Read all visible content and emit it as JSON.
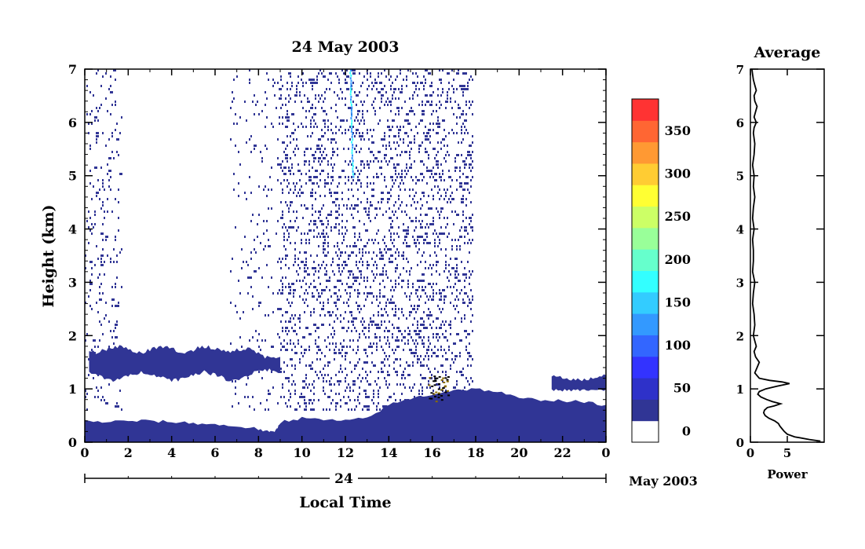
{
  "chart_data": [
    {
      "type": "heatmap",
      "title": "24 May 2003",
      "xlabel": "Local Time",
      "ylabel": "Height (km)",
      "xlim": [
        0,
        24
      ],
      "ylim": [
        0,
        7
      ],
      "x_ticks": [
        "0",
        "2",
        "4",
        "6",
        "8",
        "10",
        "12",
        "14",
        "16",
        "18",
        "20",
        "22",
        "0"
      ],
      "y_ticks": [
        "0",
        "1",
        "2",
        "3",
        "4",
        "5",
        "6",
        "7"
      ],
      "date_axis": {
        "day_label": "24",
        "month_label": "May 2003"
      },
      "layers": {
        "surface_layer_km": [
          [
            0,
            0.4
          ],
          [
            1,
            0.38
          ],
          [
            2,
            0.4
          ],
          [
            3,
            0.4
          ],
          [
            4,
            0.38
          ],
          [
            5,
            0.36
          ],
          [
            6,
            0.33
          ],
          [
            7,
            0.3
          ],
          [
            8,
            0.25
          ],
          [
            8.5,
            0.18
          ],
          [
            8.8,
            0.22
          ],
          [
            9,
            0.38
          ],
          [
            10,
            0.45
          ],
          [
            11,
            0.42
          ],
          [
            12,
            0.4
          ],
          [
            13,
            0.45
          ],
          [
            14,
            0.7
          ],
          [
            15,
            0.82
          ],
          [
            16,
            0.9
          ],
          [
            17,
            0.98
          ],
          [
            18,
            1.0
          ],
          [
            19,
            0.95
          ],
          [
            20,
            0.82
          ],
          [
            21,
            0.8
          ],
          [
            22,
            0.78
          ],
          [
            23,
            0.75
          ],
          [
            24,
            0.7
          ]
        ],
        "elevated_layer": {
          "x_start": 0.2,
          "x_end": 9,
          "base_km": 1.2,
          "top_km": 1.78
        },
        "upper_layer": {
          "x_start": 21.5,
          "x_end": 24,
          "base_km": 0.95,
          "top_km": 1.25
        },
        "noise_regions": [
          {
            "x_start": 0,
            "x_end": 1.7,
            "density": 0.09
          },
          {
            "x_start": 6.7,
            "x_end": 9.0,
            "density": 0.05
          },
          {
            "x_start": 9.0,
            "x_end": 17.9,
            "density": 0.2
          }
        ],
        "filament_x": 12.2
      },
      "colorbar": {
        "levels": [
          0,
          25,
          50,
          75,
          100,
          125,
          150,
          175,
          200,
          225,
          250,
          275,
          300,
          325,
          350,
          375
        ],
        "colors": [
          "#ffffff",
          "#303595",
          "#2e31c9",
          "#3333ff",
          "#3366ff",
          "#3399ff",
          "#33ccff",
          "#33ffff",
          "#66ffcc",
          "#99ff99",
          "#ccff66",
          "#ffff33",
          "#ffcc33",
          "#ff9933",
          "#ff6633",
          "#ff3333"
        ],
        "tick_labels": [
          "0",
          "50",
          "100",
          "150",
          "200",
          "250",
          "300",
          "350"
        ]
      }
    },
    {
      "type": "line",
      "title": "Average",
      "xlabel": "Power",
      "ylabel": "",
      "xlim": [
        0,
        10
      ],
      "ylim": [
        0,
        7
      ],
      "x_ticks": [
        "0",
        "5"
      ],
      "y_ticks": [
        "0",
        "1",
        "2",
        "3",
        "4",
        "5",
        "6",
        "7"
      ],
      "x": [
        9.5,
        8,
        6,
        5,
        4.6,
        4.3,
        4.0,
        3.8,
        3.3,
        2.5,
        2.0,
        1.8,
        1.9,
        2.3,
        3.2,
        4.1,
        3.0,
        2.2,
        1.4,
        1.0,
        1.2,
        2.1,
        3.6,
        5.3,
        4.3,
        2.6,
        1.2,
        0.6,
        0.9,
        1.2,
        0.7,
        0.5,
        0.8,
        0.6,
        0.4,
        0.6,
        0.5,
        0.3,
        0.4,
        0.6,
        0.3,
        0.4,
        0.4,
        0.3,
        0.5,
        0.3,
        0.4,
        0.6,
        0.4,
        0.5,
        0.3,
        0.5,
        0.6,
        0.4,
        0.5,
        0.8,
        0.5,
        0.7,
        0.9,
        0.6,
        0.5,
        0.8,
        0.6,
        0.4,
        0.3,
        0.2
      ],
      "y": [
        0.02,
        0.05,
        0.1,
        0.15,
        0.2,
        0.25,
        0.3,
        0.35,
        0.4,
        0.45,
        0.5,
        0.55,
        0.6,
        0.65,
        0.68,
        0.72,
        0.76,
        0.8,
        0.85,
        0.9,
        0.95,
        1.0,
        1.05,
        1.1,
        1.13,
        1.16,
        1.2,
        1.3,
        1.4,
        1.5,
        1.6,
        1.7,
        1.8,
        1.9,
        2.0,
        2.2,
        2.4,
        2.6,
        2.8,
        3.0,
        3.2,
        3.4,
        3.6,
        3.8,
        4.0,
        4.2,
        4.4,
        4.6,
        4.8,
        5.0,
        5.2,
        5.4,
        5.6,
        5.8,
        5.9,
        6.0,
        6.1,
        6.2,
        6.3,
        6.4,
        6.5,
        6.6,
        6.7,
        6.8,
        6.9,
        7.0
      ]
    }
  ]
}
